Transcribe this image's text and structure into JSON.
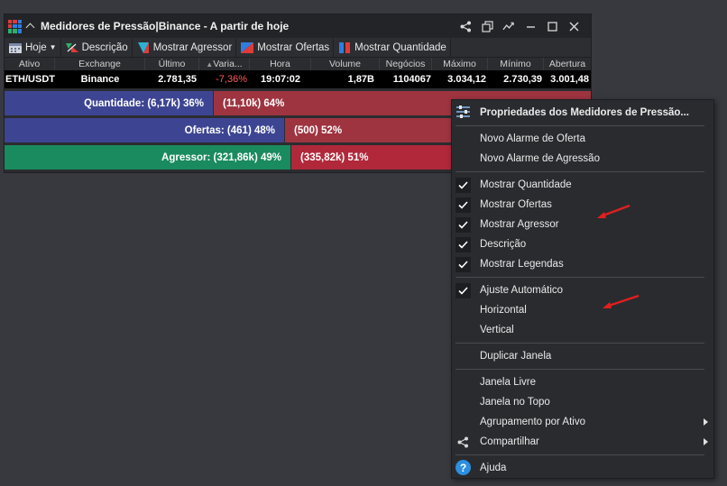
{
  "window": {
    "title": "Medidores de Pressão|Binance - A partir de hoje"
  },
  "toolbar": {
    "period_label": "Hoje",
    "descricao": "Descrição",
    "mostrar_agressor": "Mostrar Agressor",
    "mostrar_ofertas": "Mostrar Ofertas",
    "mostrar_quantidade": "Mostrar Quantidade"
  },
  "table": {
    "headers": [
      "Ativo",
      "Exchange",
      "Último",
      "Varia...",
      "Hora",
      "Volume",
      "Negócios",
      "Máximo",
      "Mínimo",
      "Abertura"
    ],
    "row": {
      "ativo": "ETH/USDT",
      "exchange": "Binance",
      "ultimo": "2.781,35",
      "variacao": "-7,36%",
      "hora": "19:07:02",
      "volume": "1,87B",
      "negocios": "1104067",
      "maximo": "3.034,12",
      "minimo": "2.730,39",
      "abertura": "3.001,48"
    }
  },
  "meters": {
    "quantidade": {
      "left_label": "Quantidade: (6,17k) 36%",
      "right_label": "(11,10k) 64%",
      "left_fraction": 0.36
    },
    "ofertas": {
      "left_label": "Ofertas: (461) 48%",
      "right_label": "(500) 52%",
      "left_fraction": 0.48
    },
    "agressor": {
      "left_label": "Agressor: (321,86k) 49%",
      "right_label": "(335,82k) 51%",
      "left_fraction": 0.49
    }
  },
  "context_menu": {
    "header": "Propriedades dos Medidores de Pressão...",
    "items": {
      "novo_alarme_oferta": "Novo Alarme de Oferta",
      "novo_alarme_agressao": "Novo Alarme de Agressão",
      "mostrar_quantidade": "Mostrar Quantidade",
      "mostrar_ofertas": "Mostrar Ofertas",
      "mostrar_agressor": "Mostrar Agressor",
      "descricao": "Descrição",
      "mostrar_legendas": "Mostrar Legendas",
      "ajuste_automatico": "Ajuste Automático",
      "horizontal": "Horizontal",
      "vertical": "Vertical",
      "duplicar_janela": "Duplicar Janela",
      "janela_livre": "Janela Livre",
      "janela_no_topo": "Janela no Topo",
      "agrupamento_por_ativo": "Agrupamento por Ativo",
      "compartilhar": "Compartilhar",
      "ajuda": "Ajuda"
    }
  },
  "colors": {
    "blue_bar": "#3d4593",
    "red_bar": "#9e3440",
    "green_bar": "#1a8a5f",
    "negative_text": "#ff5b5b",
    "annotation_arrow": "#e01f1f"
  }
}
